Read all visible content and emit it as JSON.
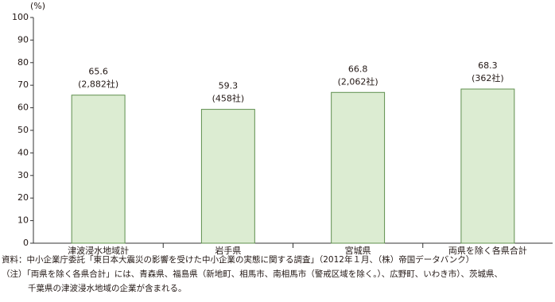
{
  "chart_data": {
    "type": "bar",
    "y_unit": "(%)",
    "categories": [
      "津波浸水地域計",
      "岩手県",
      "宮城県",
      "両県を除く各県合計"
    ],
    "values": [
      65.6,
      59.3,
      66.8,
      68.3
    ],
    "sample_labels": [
      "(2,882社)",
      "(458社)",
      "(2,062社)",
      "(362社)"
    ],
    "color": "#dcecd2",
    "edge_color": "#5f8f4e",
    "ylim": [
      0,
      100
    ],
    "yticks": [
      0,
      10,
      20,
      30,
      40,
      50,
      60,
      70,
      80,
      90,
      100
    ],
    "grid": false,
    "source": "資料：中小企業庁委託「東日本大震災の影響を受けた中小企業の実態に関する調査」（2012年１月、（株）帝国データバンク）",
    "notes": [
      "（注）「両県を除く各県合計」には、青森県、福島県（新地町、相馬市、南相馬市（警戒区域を除く。）、広野町、いわき市）、茨城県、",
      "千葉県の津波浸水地域の企業が含まれる。"
    ]
  }
}
